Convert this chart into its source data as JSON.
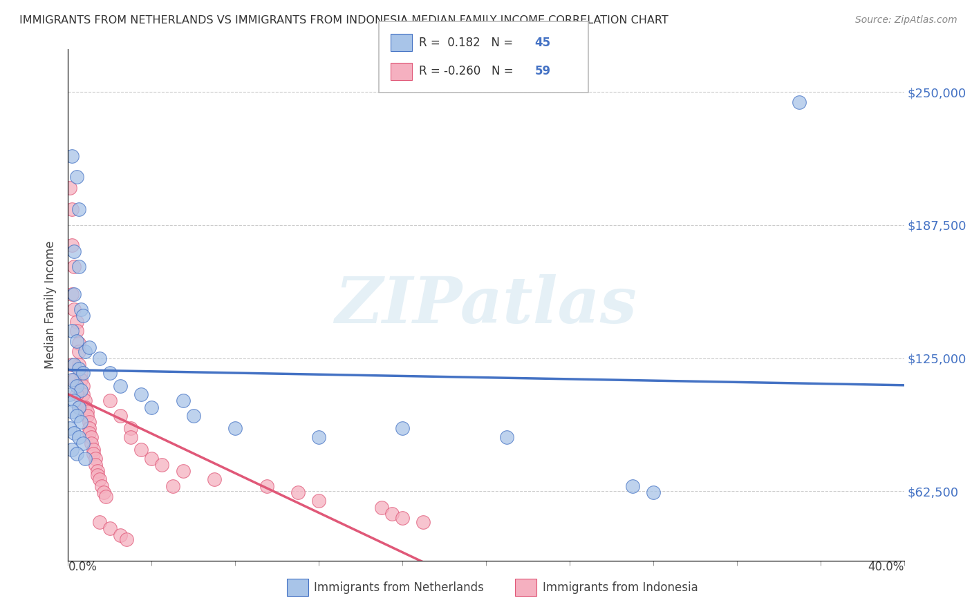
{
  "title": "IMMIGRANTS FROM NETHERLANDS VS IMMIGRANTS FROM INDONESIA MEDIAN FAMILY INCOME CORRELATION CHART",
  "source": "Source: ZipAtlas.com",
  "ylabel": "Median Family Income",
  "yticks": [
    62500,
    125000,
    187500,
    250000
  ],
  "ytick_labels": [
    "$62,500",
    "$125,000",
    "$187,500",
    "$250,000"
  ],
  "xlim": [
    0.0,
    0.4
  ],
  "ylim": [
    30000,
    270000
  ],
  "legend_netherlands": {
    "R": 0.182,
    "N": 45
  },
  "legend_indonesia": {
    "R": -0.26,
    "N": 59
  },
  "netherlands_color": "#a8c4e8",
  "indonesia_color": "#f5b0c0",
  "netherlands_line_color": "#4472c4",
  "indonesia_line_color": "#e05878",
  "watermark": "ZIPatlas",
  "netherlands_scatter": [
    [
      0.002,
      220000
    ],
    [
      0.004,
      210000
    ],
    [
      0.005,
      195000
    ],
    [
      0.003,
      175000
    ],
    [
      0.005,
      168000
    ],
    [
      0.003,
      155000
    ],
    [
      0.006,
      148000
    ],
    [
      0.007,
      145000
    ],
    [
      0.002,
      138000
    ],
    [
      0.004,
      133000
    ],
    [
      0.008,
      128000
    ],
    [
      0.003,
      122000
    ],
    [
      0.005,
      120000
    ],
    [
      0.007,
      118000
    ],
    [
      0.002,
      115000
    ],
    [
      0.004,
      112000
    ],
    [
      0.006,
      110000
    ],
    [
      0.001,
      108000
    ],
    [
      0.003,
      105000
    ],
    [
      0.005,
      102000
    ],
    [
      0.002,
      100000
    ],
    [
      0.004,
      98000
    ],
    [
      0.006,
      95000
    ],
    [
      0.001,
      92000
    ],
    [
      0.003,
      90000
    ],
    [
      0.005,
      88000
    ],
    [
      0.007,
      85000
    ],
    [
      0.002,
      82000
    ],
    [
      0.004,
      80000
    ],
    [
      0.008,
      78000
    ],
    [
      0.01,
      130000
    ],
    [
      0.015,
      125000
    ],
    [
      0.02,
      118000
    ],
    [
      0.025,
      112000
    ],
    [
      0.035,
      108000
    ],
    [
      0.04,
      102000
    ],
    [
      0.055,
      105000
    ],
    [
      0.06,
      98000
    ],
    [
      0.08,
      92000
    ],
    [
      0.12,
      88000
    ],
    [
      0.16,
      92000
    ],
    [
      0.21,
      88000
    ],
    [
      0.27,
      65000
    ],
    [
      0.35,
      245000
    ],
    [
      0.28,
      62000
    ]
  ],
  "indonesia_scatter": [
    [
      0.001,
      205000
    ],
    [
      0.002,
      195000
    ],
    [
      0.002,
      178000
    ],
    [
      0.003,
      168000
    ],
    [
      0.002,
      155000
    ],
    [
      0.003,
      148000
    ],
    [
      0.004,
      142000
    ],
    [
      0.004,
      138000
    ],
    [
      0.005,
      132000
    ],
    [
      0.005,
      128000
    ],
    [
      0.005,
      122000
    ],
    [
      0.006,
      118000
    ],
    [
      0.006,
      115000
    ],
    [
      0.007,
      112000
    ],
    [
      0.007,
      108000
    ],
    [
      0.008,
      105000
    ],
    [
      0.008,
      102000
    ],
    [
      0.009,
      100000
    ],
    [
      0.009,
      98000
    ],
    [
      0.01,
      95000
    ],
    [
      0.01,
      92000
    ],
    [
      0.01,
      90000
    ],
    [
      0.011,
      88000
    ],
    [
      0.011,
      85000
    ],
    [
      0.012,
      82000
    ],
    [
      0.012,
      80000
    ],
    [
      0.013,
      78000
    ],
    [
      0.013,
      75000
    ],
    [
      0.014,
      72000
    ],
    [
      0.014,
      70000
    ],
    [
      0.015,
      68000
    ],
    [
      0.016,
      65000
    ],
    [
      0.017,
      62000
    ],
    [
      0.018,
      60000
    ],
    [
      0.002,
      122000
    ],
    [
      0.003,
      115000
    ],
    [
      0.004,
      108000
    ],
    [
      0.005,
      102000
    ],
    [
      0.02,
      105000
    ],
    [
      0.025,
      98000
    ],
    [
      0.03,
      92000
    ],
    [
      0.03,
      88000
    ],
    [
      0.035,
      82000
    ],
    [
      0.04,
      78000
    ],
    [
      0.045,
      75000
    ],
    [
      0.055,
      72000
    ],
    [
      0.07,
      68000
    ],
    [
      0.095,
      65000
    ],
    [
      0.11,
      62000
    ],
    [
      0.12,
      58000
    ],
    [
      0.15,
      55000
    ],
    [
      0.155,
      52000
    ],
    [
      0.16,
      50000
    ],
    [
      0.17,
      48000
    ],
    [
      0.015,
      48000
    ],
    [
      0.02,
      45000
    ],
    [
      0.025,
      42000
    ],
    [
      0.028,
      40000
    ],
    [
      0.05,
      65000
    ]
  ]
}
